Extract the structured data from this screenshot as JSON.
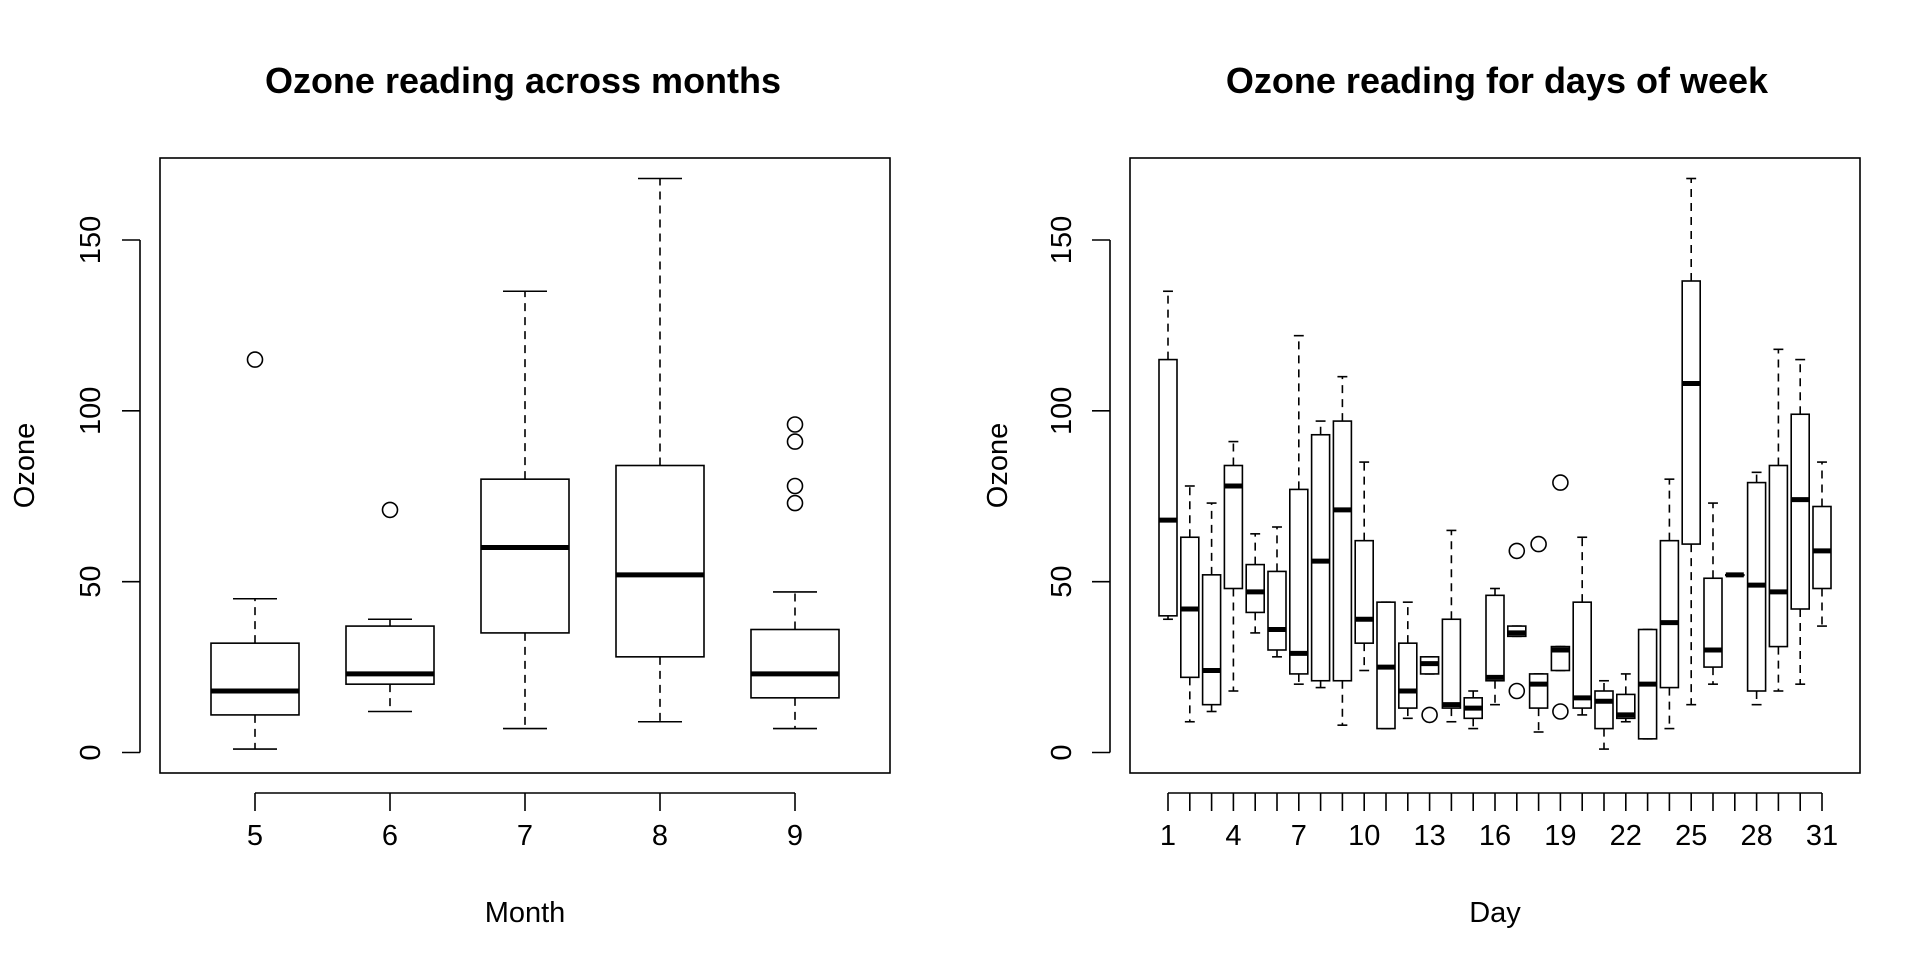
{
  "chart_data": [
    {
      "type": "boxplot",
      "title": "Ozone reading across months",
      "xlabel": "Month",
      "ylabel": "Ozone",
      "ylim": [
        -6,
        174
      ],
      "yticks": [
        0,
        50,
        100,
        150
      ],
      "categories": [
        "5",
        "6",
        "7",
        "8",
        "9"
      ],
      "boxes": [
        {
          "label": "5",
          "whisker_low": 1,
          "q1": 11,
          "median": 18,
          "q3": 32,
          "whisker_high": 45,
          "outliers": [
            115
          ]
        },
        {
          "label": "6",
          "whisker_low": 12,
          "q1": 20,
          "median": 23,
          "q3": 37,
          "whisker_high": 39,
          "outliers": [
            71
          ]
        },
        {
          "label": "7",
          "whisker_low": 7,
          "q1": 35,
          "median": 60,
          "q3": 80,
          "whisker_high": 135,
          "outliers": []
        },
        {
          "label": "8",
          "whisker_low": 9,
          "q1": 28,
          "median": 52,
          "q3": 84,
          "whisker_high": 168,
          "outliers": []
        },
        {
          "label": "9",
          "whisker_low": 7,
          "q1": 16,
          "median": 23,
          "q3": 36,
          "whisker_high": 47,
          "outliers": [
            73,
            78,
            91,
            96
          ]
        }
      ]
    },
    {
      "type": "boxplot",
      "title": "Ozone reading for days of week",
      "xlabel": "Day",
      "ylabel": "Ozone",
      "ylim": [
        -6,
        174
      ],
      "yticks": [
        0,
        50,
        100,
        150
      ],
      "categories": [
        "1",
        "2",
        "3",
        "4",
        "5",
        "6",
        "7",
        "8",
        "9",
        "10",
        "11",
        "12",
        "13",
        "14",
        "15",
        "16",
        "17",
        "18",
        "19",
        "20",
        "21",
        "22",
        "23",
        "24",
        "25",
        "26",
        "27",
        "28",
        "29",
        "30",
        "31"
      ],
      "tick_labels": [
        "1",
        "4",
        "7",
        "10",
        "13",
        "16",
        "19",
        "22",
        "25",
        "28",
        "31"
      ],
      "boxes": [
        {
          "label": "1",
          "whisker_low": 39,
          "q1": 40,
          "median": 68,
          "q3": 115,
          "whisker_high": 135,
          "outliers": []
        },
        {
          "label": "2",
          "whisker_low": 9,
          "q1": 22,
          "median": 42,
          "q3": 63,
          "whisker_high": 78,
          "outliers": []
        },
        {
          "label": "3",
          "whisker_low": 12,
          "q1": 14,
          "median": 24,
          "q3": 52,
          "whisker_high": 73,
          "outliers": []
        },
        {
          "label": "4",
          "whisker_low": 18,
          "q1": 48,
          "median": 78,
          "q3": 84,
          "whisker_high": 91,
          "outliers": []
        },
        {
          "label": "5",
          "whisker_low": 35,
          "q1": 41,
          "median": 47,
          "q3": 55,
          "whisker_high": 64,
          "outliers": []
        },
        {
          "label": "6",
          "whisker_low": 28,
          "q1": 30,
          "median": 36,
          "q3": 53,
          "whisker_high": 66,
          "outliers": []
        },
        {
          "label": "7",
          "whisker_low": 20,
          "q1": 23,
          "median": 29,
          "q3": 77,
          "whisker_high": 122,
          "outliers": []
        },
        {
          "label": "8",
          "whisker_low": 19,
          "q1": 21,
          "median": 56,
          "q3": 93,
          "whisker_high": 97,
          "outliers": []
        },
        {
          "label": "9",
          "whisker_low": 8,
          "q1": 21,
          "median": 71,
          "q3": 97,
          "whisker_high": 110,
          "outliers": []
        },
        {
          "label": "10",
          "whisker_low": 24,
          "q1": 32,
          "median": 39,
          "q3": 62,
          "whisker_high": 85,
          "outliers": []
        },
        {
          "label": "11",
          "whisker_low": 7,
          "q1": 7,
          "median": 25,
          "q3": 44,
          "whisker_high": 44,
          "outliers": []
        },
        {
          "label": "12",
          "whisker_low": 10,
          "q1": 13,
          "median": 18,
          "q3": 32,
          "whisker_high": 44,
          "outliers": []
        },
        {
          "label": "13",
          "whisker_low": 23,
          "q1": 23,
          "median": 26,
          "q3": 28,
          "whisker_high": 28,
          "outliers": [
            11
          ]
        },
        {
          "label": "14",
          "whisker_low": 9,
          "q1": 13,
          "median": 14,
          "q3": 39,
          "whisker_high": 65,
          "outliers": []
        },
        {
          "label": "15",
          "whisker_low": 7,
          "q1": 10,
          "median": 13,
          "q3": 16,
          "whisker_high": 18,
          "outliers": []
        },
        {
          "label": "16",
          "whisker_low": 14,
          "q1": 21,
          "median": 22,
          "q3": 46,
          "whisker_high": 48,
          "outliers": []
        },
        {
          "label": "17",
          "whisker_low": 34,
          "q1": 34,
          "median": 35,
          "q3": 37,
          "whisker_high": 37,
          "outliers": [
            18,
            59
          ]
        },
        {
          "label": "18",
          "whisker_low": 6,
          "q1": 13,
          "median": 20,
          "q3": 23,
          "whisker_high": 23,
          "outliers": [
            61
          ]
        },
        {
          "label": "19",
          "whisker_low": 24,
          "q1": 24,
          "median": 30,
          "q3": 31,
          "whisker_high": 31,
          "outliers": [
            12,
            79
          ]
        },
        {
          "label": "20",
          "whisker_low": 11,
          "q1": 13,
          "median": 16,
          "q3": 44,
          "whisker_high": 63,
          "outliers": []
        },
        {
          "label": "21",
          "whisker_low": 1,
          "q1": 7,
          "median": 15,
          "q3": 18,
          "whisker_high": 21,
          "outliers": []
        },
        {
          "label": "22",
          "whisker_low": 9,
          "q1": 10,
          "median": 11,
          "q3": 17,
          "whisker_high": 23,
          "outliers": []
        },
        {
          "label": "23",
          "whisker_low": 4,
          "q1": 4,
          "median": 20,
          "q3": 36,
          "whisker_high": 36,
          "outliers": []
        },
        {
          "label": "24",
          "whisker_low": 7,
          "q1": 19,
          "median": 38,
          "q3": 62,
          "whisker_high": 80,
          "outliers": []
        },
        {
          "label": "25",
          "whisker_low": 14,
          "q1": 61,
          "median": 108,
          "q3": 138,
          "whisker_high": 168,
          "outliers": []
        },
        {
          "label": "26",
          "whisker_low": 20,
          "q1": 25,
          "median": 30,
          "q3": 51,
          "whisker_high": 73,
          "outliers": []
        },
        {
          "label": "27",
          "whisker_low": 52,
          "q1": 52,
          "median": 52,
          "q3": 52,
          "whisker_high": 52,
          "outliers": []
        },
        {
          "label": "28",
          "whisker_low": 14,
          "q1": 18,
          "median": 49,
          "q3": 79,
          "whisker_high": 82,
          "outliers": []
        },
        {
          "label": "29",
          "whisker_low": 18,
          "q1": 31,
          "median": 47,
          "q3": 84,
          "whisker_high": 118,
          "outliers": []
        },
        {
          "label": "30",
          "whisker_low": 20,
          "q1": 42,
          "median": 74,
          "q3": 99,
          "whisker_high": 115,
          "outliers": []
        },
        {
          "label": "31",
          "whisker_low": 37,
          "q1": 48,
          "median": 59,
          "q3": 72,
          "whisker_high": 85,
          "outliers": []
        }
      ]
    }
  ]
}
